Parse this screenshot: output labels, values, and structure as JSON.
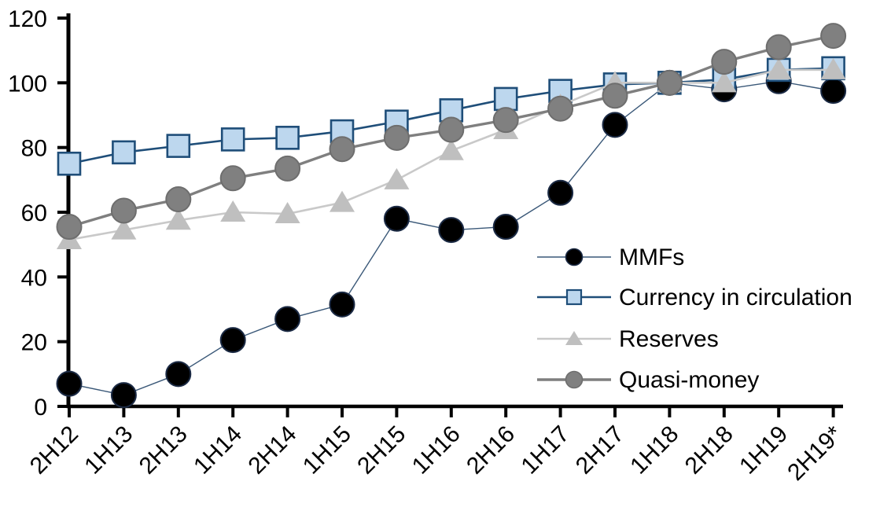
{
  "chart_data": {
    "type": "line",
    "title": "",
    "categories": [
      "2H12",
      "1H13",
      "2H13",
      "1H14",
      "2H14",
      "1H15",
      "2H15",
      "1H16",
      "2H16",
      "1H17",
      "2H17",
      "1H18",
      "2H18",
      "1H19",
      "2H19*"
    ],
    "series": [
      {
        "name": "MMFs",
        "marker": "circle",
        "line_color": "#3a5878",
        "marker_fill": "#000000",
        "marker_stroke": "#1b2a44",
        "values": [
          7,
          3.5,
          10,
          20.5,
          27,
          31.5,
          58,
          54.5,
          55.5,
          66,
          87,
          100,
          98,
          100.5,
          97.5
        ]
      },
      {
        "name": "Currency in circulation",
        "marker": "square",
        "line_color": "#1f4e79",
        "marker_fill": "#bdd7ee",
        "marker_stroke": "#1f4e79",
        "values": [
          75,
          78.5,
          80.5,
          82.5,
          83,
          85,
          88,
          91.5,
          95,
          97.5,
          99.5,
          100,
          101,
          104,
          104.5
        ]
      },
      {
        "name": "Reserves",
        "marker": "triangle",
        "line_color": "#c9c9c9",
        "marker_fill": "#bfbfbf",
        "marker_stroke": "#bfbfbf",
        "values": [
          51.5,
          54.5,
          57.5,
          60,
          59.5,
          63,
          70,
          79,
          85.5,
          93,
          100,
          100,
          100,
          104,
          104
        ]
      },
      {
        "name": "Quasi-money",
        "marker": "circle",
        "line_color": "#7f7f7f",
        "marker_fill": "#808080",
        "marker_stroke": "#6e6e6e",
        "values": [
          55.5,
          60.5,
          64,
          70.5,
          73.5,
          79.5,
          83,
          85.5,
          88.5,
          92,
          96,
          100,
          106.5,
          111,
          114.5
        ]
      }
    ],
    "ylim": [
      0,
      120
    ],
    "yticks": [
      0,
      20,
      40,
      60,
      80,
      100,
      120
    ],
    "xlabel": "",
    "ylabel": "",
    "x_tick_label_rotation_deg": -45,
    "grid": false,
    "legend_position": "inside-right",
    "legend_order": [
      "MMFs",
      "Currency in circulation",
      "Reserves",
      "Quasi-money"
    ],
    "axis_color": "#000000",
    "background_color": "#ffffff"
  }
}
